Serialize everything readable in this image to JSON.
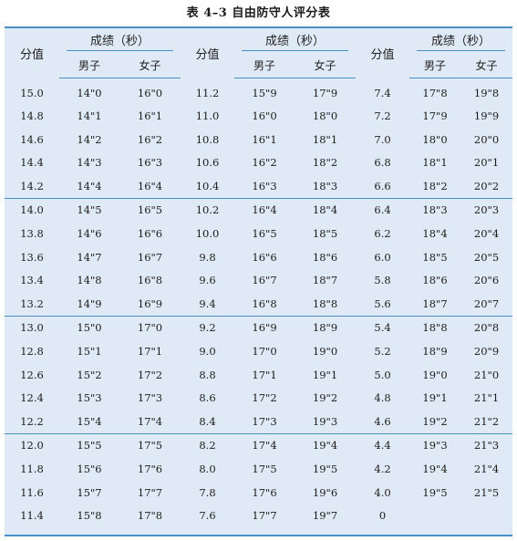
{
  "title": "表 4–3  自由防守人评分表",
  "headers": {
    "score": "分值",
    "group": "成绩（秒）",
    "male": "男子",
    "female": "女子"
  },
  "rows": [
    [
      "15.0",
      "14\"0",
      "16\"0",
      "11.2",
      "15\"9",
      "17\"9",
      "7.4",
      "17\"8",
      "19\"8"
    ],
    [
      "14.8",
      "14\"1",
      "16\"1",
      "11.0",
      "16\"0",
      "18\"0",
      "7.2",
      "17\"9",
      "19\"9"
    ],
    [
      "14.6",
      "14\"2",
      "16\"2",
      "10.8",
      "16\"1",
      "18\"1",
      "7.0",
      "18\"0",
      "20\"0"
    ],
    [
      "14.4",
      "14\"3",
      "16\"3",
      "10.6",
      "16\"2",
      "18\"2",
      "6.8",
      "18\"1",
      "20\"1"
    ],
    [
      "14.2",
      "14\"4",
      "16\"4",
      "10.4",
      "16\"3",
      "18\"3",
      "6.6",
      "18\"2",
      "20\"2"
    ],
    [
      "14.0",
      "14\"5",
      "16\"5",
      "10.2",
      "16\"4",
      "18\"4",
      "6.4",
      "18\"3",
      "20\"3"
    ],
    [
      "13.8",
      "14\"6",
      "16\"6",
      "10.0",
      "16\"5",
      "18\"5",
      "6.2",
      "18\"4",
      "20\"4"
    ],
    [
      "13.6",
      "14\"7",
      "16\"7",
      "9.8",
      "16\"6",
      "18\"6",
      "6.0",
      "18\"5",
      "20\"5"
    ],
    [
      "13.4",
      "14\"8",
      "16\"8",
      "9.6",
      "16\"7",
      "18\"7",
      "5.8",
      "18\"6",
      "20\"6"
    ],
    [
      "13.2",
      "14\"9",
      "16\"9",
      "9.4",
      "16\"8",
      "18\"8",
      "5.6",
      "18\"7",
      "20\"7"
    ],
    [
      "13.0",
      "15\"0",
      "17\"0",
      "9.2",
      "16\"9",
      "18\"9",
      "5.4",
      "18\"8",
      "20\"8"
    ],
    [
      "12.8",
      "15\"1",
      "17\"1",
      "9.0",
      "17\"0",
      "19\"0",
      "5.2",
      "18\"9",
      "20\"9"
    ],
    [
      "12.6",
      "15\"2",
      "17\"2",
      "8.8",
      "17\"1",
      "19\"1",
      "5.0",
      "19\"0",
      "21\"0"
    ],
    [
      "12.4",
      "15\"3",
      "17\"3",
      "8.6",
      "17\"2",
      "19\"2",
      "4.8",
      "19\"1",
      "21\"1"
    ],
    [
      "12.2",
      "15\"4",
      "17\"4",
      "8.4",
      "17\"3",
      "19\"3",
      "4.6",
      "19\"2",
      "21\"2"
    ],
    [
      "12.0",
      "15\"5",
      "17\"5",
      "8.2",
      "17\"4",
      "19\"4",
      "4.4",
      "19\"3",
      "21\"3"
    ],
    [
      "11.8",
      "15\"6",
      "17\"6",
      "8.0",
      "17\"5",
      "19\"5",
      "4.2",
      "19\"4",
      "21\"4"
    ],
    [
      "11.6",
      "15\"7",
      "17\"7",
      "7.8",
      "17\"6",
      "19\"6",
      "4.0",
      "19\"5",
      "21\"5"
    ],
    [
      "11.4",
      "15\"8",
      "17\"8",
      "7.6",
      "17\"7",
      "19\"7",
      "0",
      "",
      ""
    ]
  ],
  "colors": {
    "table_bg": "#dfeaf6",
    "rule": "#4a90c8",
    "text": "#1c1c1c"
  }
}
